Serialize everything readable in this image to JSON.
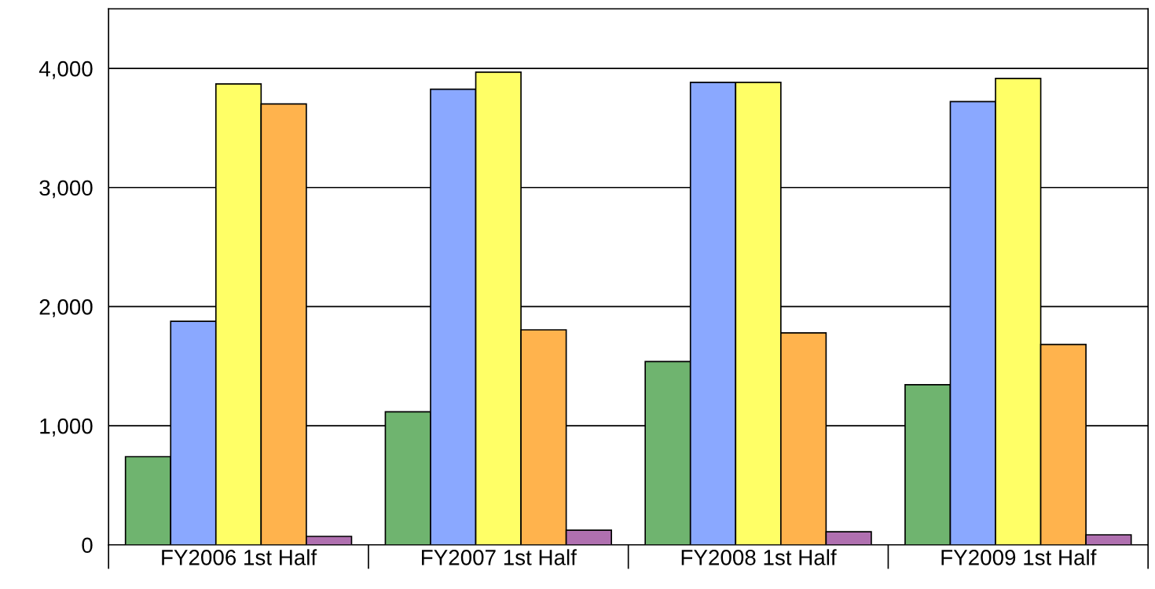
{
  "chart_data": {
    "type": "bar",
    "categories": [
      "FY2006 1st Half",
      "FY2007 1st Half",
      "FY2008 1st Half",
      "FY2009 1st Half"
    ],
    "series": [
      {
        "color": "#6fb46f",
        "values": [
          740,
          1117,
          1539,
          1344
        ]
      },
      {
        "color": "#8aa8ff",
        "values": [
          1877,
          3825,
          3883,
          3721
        ]
      },
      {
        "color": "#ffff66",
        "values": [
          3870,
          3968,
          3883,
          3916
        ]
      },
      {
        "color": "#ffb34d",
        "values": [
          3701,
          1805,
          1779,
          1682
        ]
      },
      {
        "color": "#b070b0",
        "values": [
          71,
          123,
          110,
          84
        ]
      }
    ],
    "ylim": [
      0,
      4500
    ],
    "yticks": [
      {
        "value": 0,
        "label": "0"
      },
      {
        "value": 1000,
        "label": "1,000"
      },
      {
        "value": 2000,
        "label": "2,000"
      },
      {
        "value": 3000,
        "label": "3,000"
      },
      {
        "value": 4000,
        "label": "4,000"
      }
    ],
    "grid": "y"
  }
}
